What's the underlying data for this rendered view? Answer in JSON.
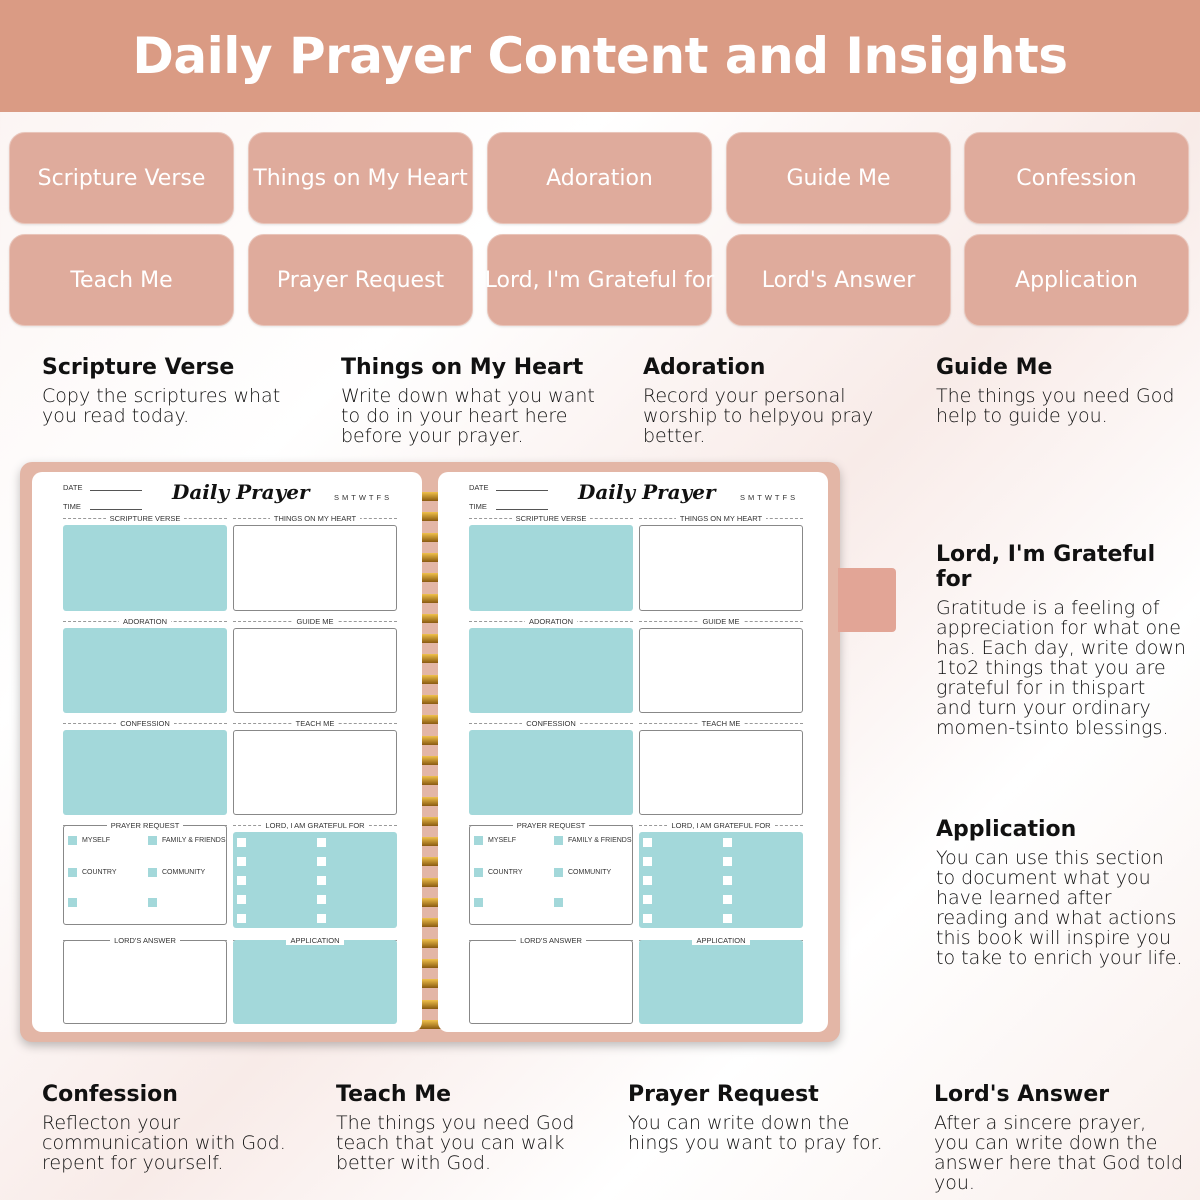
{
  "header": {
    "title": "Daily Prayer Content and Insights"
  },
  "chips": [
    "Scripture Verse",
    "Things on My Heart",
    "Adoration",
    "Guide Me",
    "Confession",
    "Teach Me",
    "Prayer Request",
    "Lord, I'm Grateful for",
    "Lord's Answer",
    "Application"
  ],
  "descriptions": [
    {
      "title": "Scripture Verse",
      "text": "Copy the scriptures what you read today."
    },
    {
      "title": "Things on My Heart",
      "text": "Write down what you want to do in your heart here before your prayer."
    },
    {
      "title": "Adoration",
      "text": "Record your personal worship to helpyou pray better."
    },
    {
      "title": "Guide Me",
      "text": "The things you need God help to guide you."
    },
    {
      "title": "Lord, I'm Grateful for",
      "text": "Gratitude is a feeling of appreciation for what one has. Each day, write down 1to2 things that you are grateful for in thispart and turn your ordinary momen-tsinto blessings."
    },
    {
      "title": "Application",
      "text": "You can use this section to document what you have learned after reading and what actions this book will inspire you to take to enrich your life."
    },
    {
      "title": "Confession",
      "text": "Reflecton your communication with God. repent for yourself."
    },
    {
      "title": "Teach Me",
      "text": "The things you need God teach that you can walk better with God."
    },
    {
      "title": "Prayer Request",
      "text": "You can write down the hings you want to pray for."
    },
    {
      "title": "Lord's Answer",
      "text": "After a sincere prayer, you can write down the answer here that God told you."
    }
  ],
  "notebook": {
    "date_label": "DATE",
    "time_label": "TIME",
    "title": "Daily Prayer",
    "days": "SMTWTFS",
    "sections": [
      "SCRIPTURE VERSE",
      "THINGS ON MY HEART",
      "ADORATION",
      "GUIDE ME",
      "CONFESSION",
      "TEACH ME",
      "PRAYER REQUEST",
      "LORD, I AM GRATEFUL FOR",
      "LORD'S ANSWER",
      "APPLICATION"
    ],
    "prayer_options": [
      "MYSELF",
      "FAMILY & FRIENDS",
      "COUNTRY",
      "COMMUNITY"
    ]
  },
  "colors": {
    "header": "#da9b84",
    "chip": "#dfab9c",
    "teal": "#a3d8da"
  }
}
